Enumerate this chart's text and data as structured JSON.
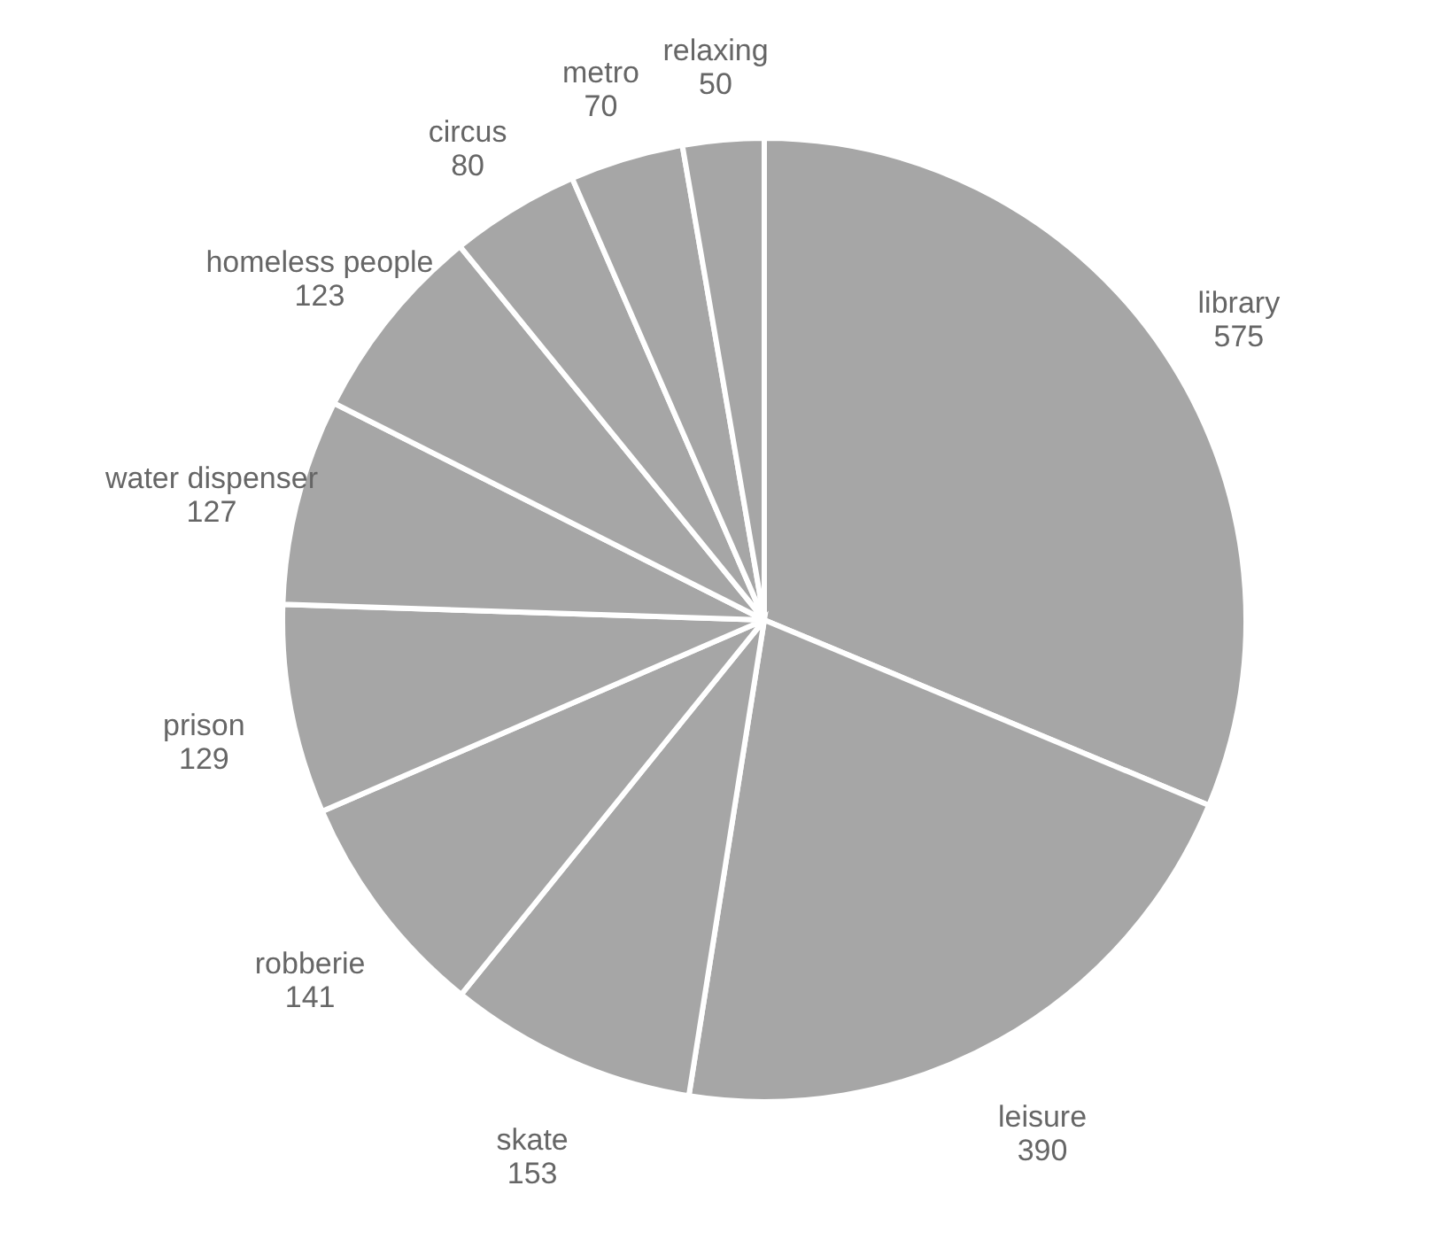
{
  "chart_data": {
    "type": "pie",
    "categories": [
      "library",
      "leisure",
      "skate",
      "robberie",
      "prison",
      "water dispenser",
      "homeless people",
      "circus",
      "metro",
      "relaxing"
    ],
    "values": [
      575,
      390,
      153,
      141,
      129,
      127,
      123,
      80,
      70,
      50
    ],
    "colors": [
      "#a6a6a6",
      "#a6a6a6",
      "#a6a6a6",
      "#a6a6a6",
      "#a6a6a6",
      "#a6a6a6",
      "#a6a6a6",
      "#a6a6a6",
      "#a6a6a6",
      "#a6a6a6"
    ],
    "data_labels": true
  }
}
